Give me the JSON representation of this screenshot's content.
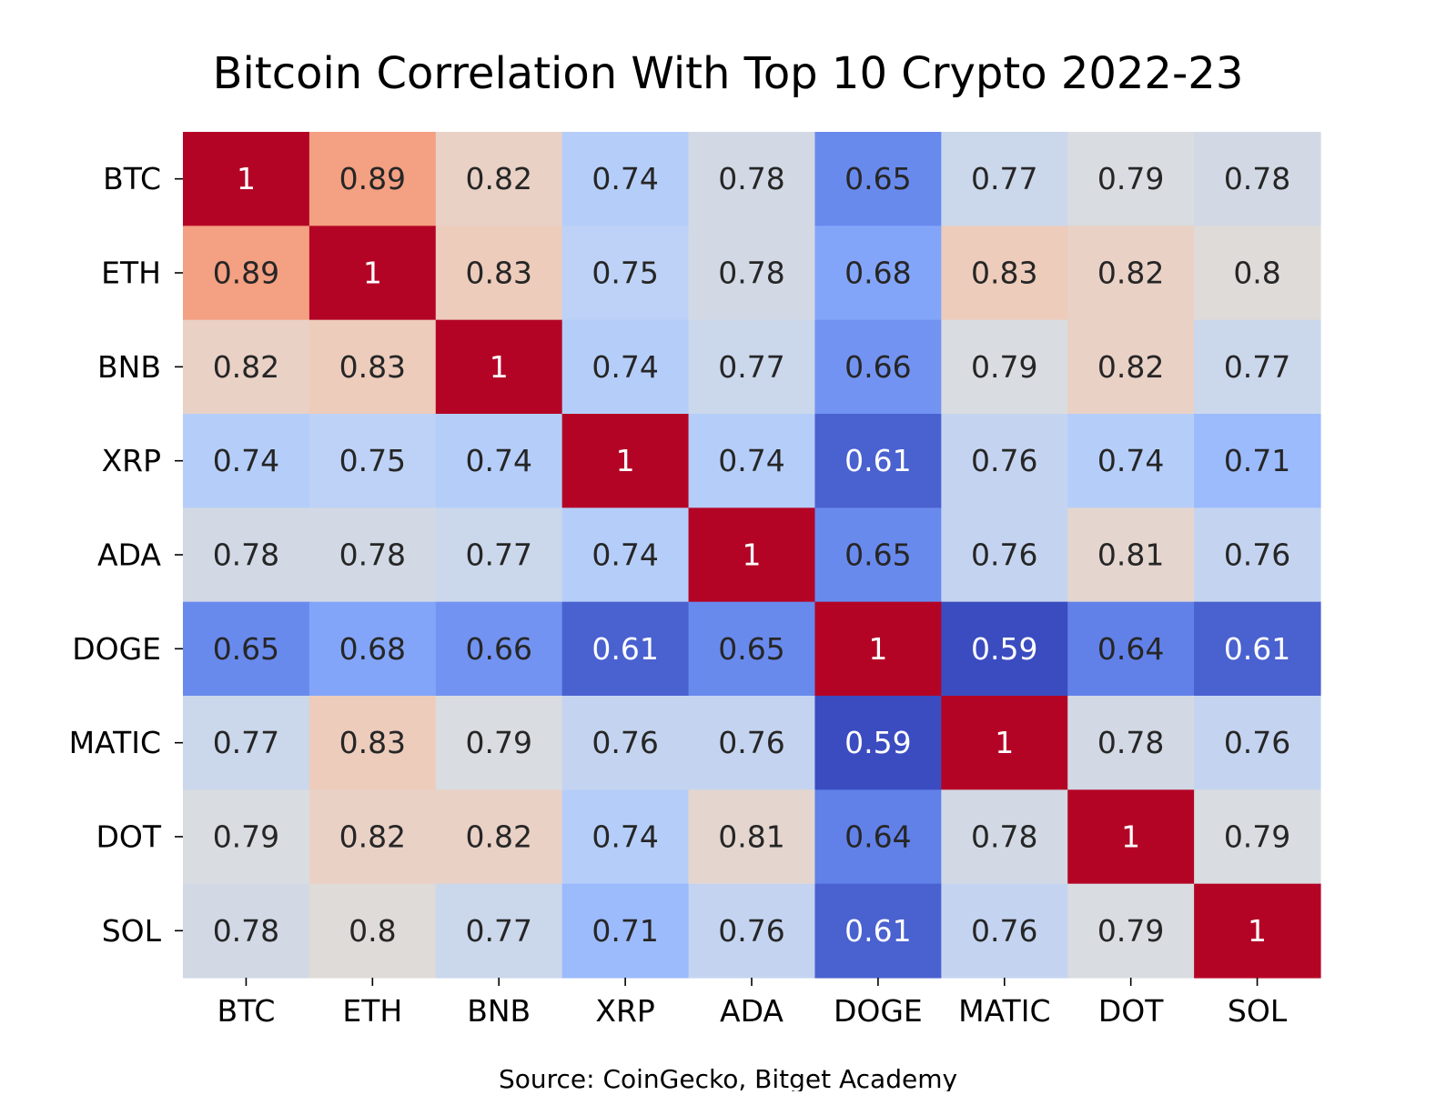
{
  "chart_data": {
    "type": "heatmap",
    "title": "Bitcoin Correlation With Top 10 Crypto 2022-23",
    "xlabel": "",
    "ylabel": "",
    "source": "Source: CoinGecko, Bitget Academy",
    "x_labels": [
      "BTC",
      "ETH",
      "BNB",
      "XRP",
      "ADA",
      "DOGE",
      "MATIC",
      "DOT",
      "SOL"
    ],
    "y_labels": [
      "BTC",
      "ETH",
      "BNB",
      "XRP",
      "ADA",
      "DOGE",
      "MATIC",
      "DOT",
      "SOL"
    ],
    "values": [
      [
        1,
        0.89,
        0.82,
        0.74,
        0.78,
        0.65,
        0.77,
        0.79,
        0.78
      ],
      [
        0.89,
        1,
        0.83,
        0.75,
        0.78,
        0.68,
        0.83,
        0.82,
        0.8
      ],
      [
        0.82,
        0.83,
        1,
        0.74,
        0.77,
        0.66,
        0.79,
        0.82,
        0.77
      ],
      [
        0.74,
        0.75,
        0.74,
        1,
        0.74,
        0.61,
        0.76,
        0.74,
        0.71
      ],
      [
        0.78,
        0.78,
        0.77,
        0.74,
        1,
        0.65,
        0.76,
        0.81,
        0.76
      ],
      [
        0.65,
        0.68,
        0.66,
        0.61,
        0.65,
        1,
        0.59,
        0.64,
        0.61
      ],
      [
        0.77,
        0.83,
        0.79,
        0.76,
        0.76,
        0.59,
        1,
        0.78,
        0.76
      ],
      [
        0.79,
        0.82,
        0.82,
        0.74,
        0.81,
        0.64,
        0.78,
        1,
        0.79
      ],
      [
        0.78,
        0.8,
        0.77,
        0.71,
        0.76,
        0.61,
        0.76,
        0.79,
        1
      ]
    ],
    "colormap": "coolwarm",
    "colorscale_range": [
      0.59,
      1
    ],
    "colorbar": false,
    "grid": false
  }
}
